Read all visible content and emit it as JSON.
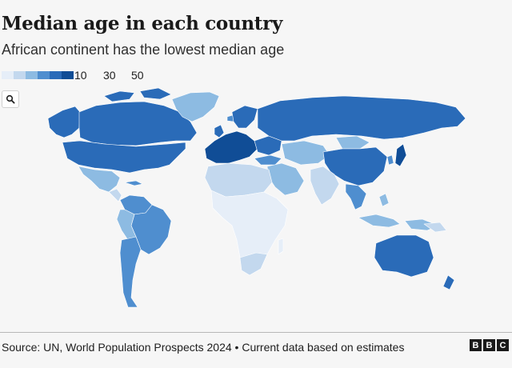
{
  "title": "Median age in each country",
  "subtitle": "African continent has the lowest median age",
  "legend": {
    "colors": [
      "#e6eef8",
      "#c3d8ee",
      "#8dbbe2",
      "#4f8ecf",
      "#2a6bb8",
      "#104d96"
    ],
    "ticks": [
      "10",
      "30",
      "50"
    ]
  },
  "zoom": {
    "icon": "search-icon"
  },
  "source": "Source: UN, World Population Prospects 2024 • Current data based on estimates",
  "logo": {
    "letters": [
      "B",
      "B",
      "C"
    ]
  },
  "colors": {
    "ocean_bg": "#f6f6f6",
    "border": "#ffffff",
    "very_low": "#e6eef8",
    "low": "#c3d8ee",
    "mid_low": "#8dbbe2",
    "mid": "#4f8ecf",
    "high": "#2a6bb8",
    "very_high": "#104d96"
  }
}
